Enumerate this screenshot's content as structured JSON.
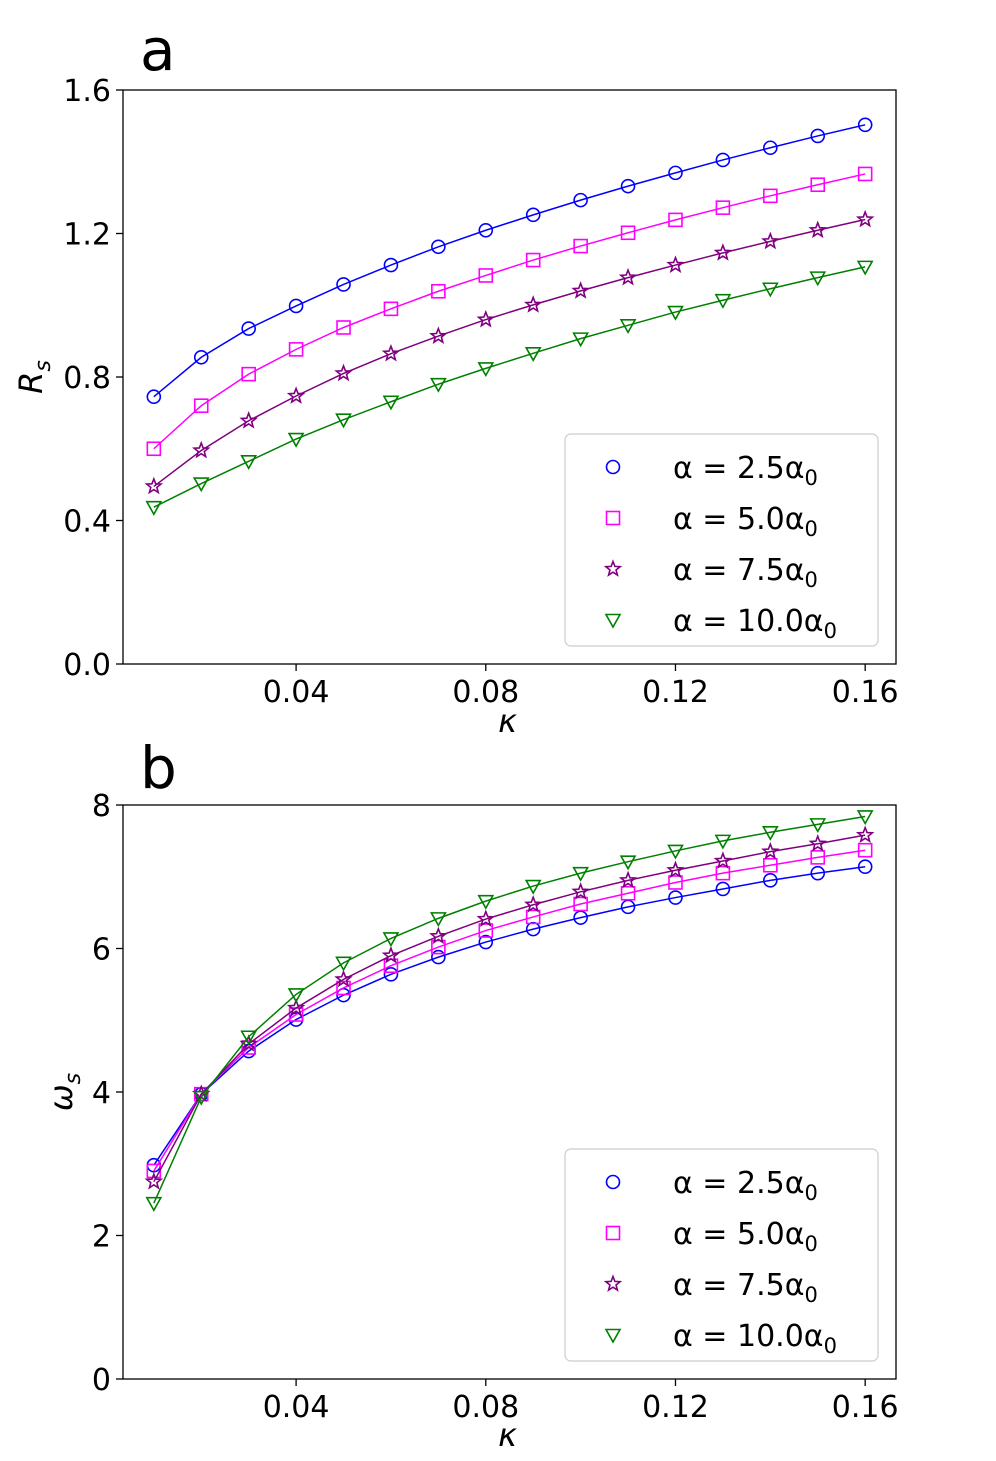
{
  "chart_data": [
    {
      "panel_label": "a",
      "type": "line",
      "xlabel": "κ",
      "ylabel": "R",
      "ylabel_sub": "s",
      "xlim": [
        0.0035,
        0.1665
      ],
      "ylim": [
        0.0,
        1.6
      ],
      "x_ticks": [
        0.04,
        0.08,
        0.12,
        0.16
      ],
      "x_tick_labels": [
        "0.04",
        "0.08",
        "0.12",
        "0.16"
      ],
      "y_ticks": [
        0.0,
        0.4,
        0.8,
        1.2,
        1.6
      ],
      "y_tick_labels": [
        "0.0",
        "0.4",
        "0.8",
        "1.2",
        "1.6"
      ],
      "legend_position": "lower-right",
      "x": [
        0.01,
        0.02,
        0.03,
        0.04,
        0.05,
        0.06,
        0.07,
        0.08,
        0.09,
        0.1,
        0.11,
        0.12,
        0.13,
        0.14,
        0.15,
        0.16
      ],
      "series": [
        {
          "name": "α = 2.5α0",
          "label_main": "α = 2.5α",
          "label_sub": "0",
          "color": "#0000ff",
          "marker": "circle",
          "values": [
            0.745,
            0.855,
            0.935,
            0.998,
            1.058,
            1.112,
            1.163,
            1.209,
            1.252,
            1.293,
            1.332,
            1.369,
            1.405,
            1.439,
            1.472,
            1.503
          ]
        },
        {
          "name": "α = 5.0α0",
          "label_main": "α = 5.0α",
          "label_sub": "0",
          "color": "#ff00ff",
          "marker": "square",
          "values": [
            0.6,
            0.72,
            0.808,
            0.877,
            0.938,
            0.99,
            1.039,
            1.083,
            1.126,
            1.165,
            1.202,
            1.238,
            1.272,
            1.305,
            1.336,
            1.366
          ]
        },
        {
          "name": "α = 7.5α0",
          "label_main": "α = 7.5α",
          "label_sub": "0",
          "color": "#800080",
          "marker": "star",
          "values": [
            0.495,
            0.595,
            0.678,
            0.747,
            0.81,
            0.865,
            0.914,
            0.96,
            1.001,
            1.04,
            1.077,
            1.112,
            1.146,
            1.178,
            1.209,
            1.239
          ]
        },
        {
          "name": "α = 10.0α0",
          "label_main": "α = 10.0α",
          "label_sub": "0",
          "color": "#008000",
          "marker": "triangle-down",
          "values": [
            0.437,
            0.503,
            0.565,
            0.627,
            0.681,
            0.731,
            0.78,
            0.824,
            0.866,
            0.907,
            0.944,
            0.981,
            1.014,
            1.046,
            1.077,
            1.107
          ]
        }
      ]
    },
    {
      "panel_label": "b",
      "type": "line",
      "xlabel": "κ",
      "ylabel": "ω",
      "ylabel_sub": "s",
      "xlim": [
        0.0035,
        0.1665
      ],
      "ylim": [
        0,
        8
      ],
      "x_ticks": [
        0.04,
        0.08,
        0.12,
        0.16
      ],
      "x_tick_labels": [
        "0.04",
        "0.08",
        "0.12",
        "0.16"
      ],
      "y_ticks": [
        0,
        2,
        4,
        6,
        8
      ],
      "y_tick_labels": [
        "0",
        "2",
        "4",
        "6",
        "8"
      ],
      "legend_position": "lower-right",
      "x": [
        0.01,
        0.02,
        0.03,
        0.04,
        0.05,
        0.06,
        0.07,
        0.08,
        0.09,
        0.1,
        0.11,
        0.12,
        0.13,
        0.14,
        0.15,
        0.16
      ],
      "series": [
        {
          "name": "α = 2.5α0",
          "label_main": "α = 2.5α",
          "label_sub": "0",
          "color": "#0000ff",
          "marker": "circle",
          "values": [
            2.98,
            3.97,
            4.57,
            5.01,
            5.35,
            5.64,
            5.88,
            6.09,
            6.27,
            6.43,
            6.58,
            6.71,
            6.83,
            6.95,
            7.05,
            7.14
          ]
        },
        {
          "name": "α = 5.0α0",
          "label_main": "α = 5.0α",
          "label_sub": "0",
          "color": "#ff00ff",
          "marker": "square",
          "values": [
            2.9,
            3.97,
            4.62,
            5.08,
            5.45,
            5.76,
            6.02,
            6.25,
            6.44,
            6.62,
            6.77,
            6.92,
            7.05,
            7.16,
            7.27,
            7.37
          ]
        },
        {
          "name": "α = 7.5α0",
          "label_main": "α = 7.5α",
          "label_sub": "0",
          "color": "#800080",
          "marker": "star",
          "values": [
            2.75,
            3.97,
            4.67,
            5.17,
            5.57,
            5.9,
            6.17,
            6.41,
            6.61,
            6.79,
            6.95,
            7.09,
            7.22,
            7.35,
            7.46,
            7.58
          ]
        },
        {
          "name": "α = 10.0α0",
          "label_main": "α = 10.0α",
          "label_sub": "0",
          "color": "#008000",
          "marker": "triangle-down",
          "values": [
            2.45,
            3.93,
            4.77,
            5.36,
            5.8,
            6.14,
            6.42,
            6.66,
            6.87,
            7.05,
            7.21,
            7.36,
            7.5,
            7.62,
            7.73,
            7.84
          ]
        }
      ]
    }
  ]
}
